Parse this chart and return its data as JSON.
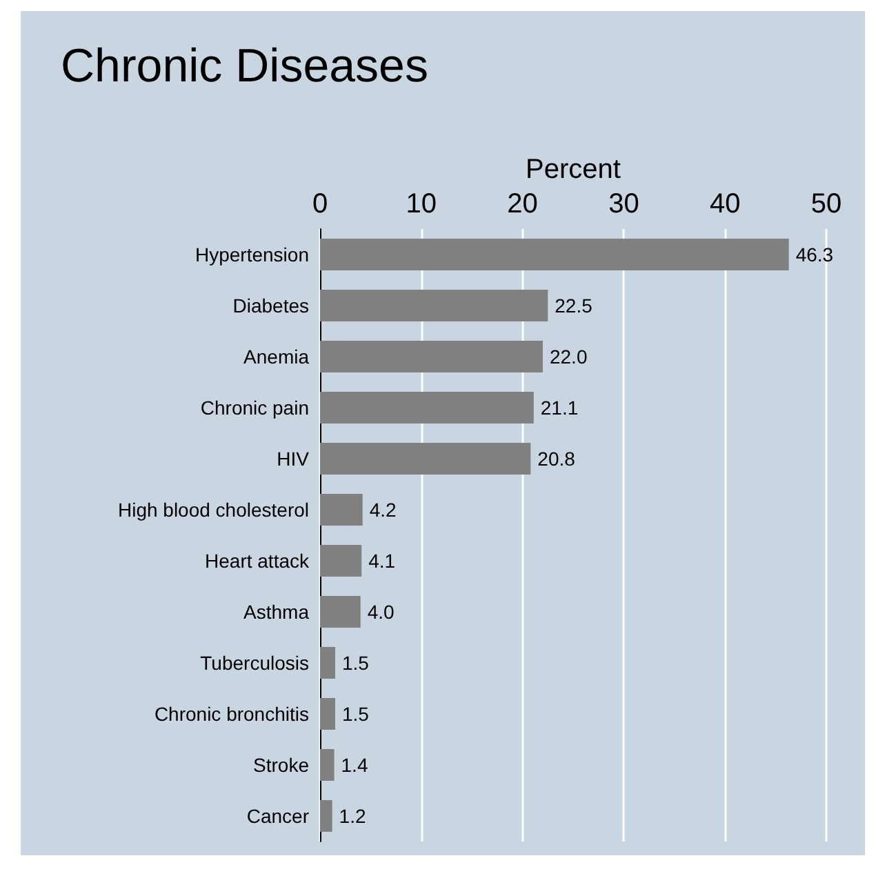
{
  "chart_data": {
    "type": "bar",
    "orientation": "horizontal",
    "title": "Chronic Diseases",
    "xlabel": "Percent",
    "categories": [
      "Hypertension",
      "Diabetes",
      "Anemia",
      "Chronic pain",
      "HIV",
      "High blood cholesterol",
      "Heart attack",
      "Asthma",
      "Tuberculosis",
      "Chronic bronchitis",
      "Stroke",
      "Cancer"
    ],
    "values": [
      46.3,
      22.5,
      22.0,
      21.1,
      20.8,
      4.2,
      4.1,
      4.0,
      1.5,
      1.5,
      1.4,
      1.2
    ],
    "value_labels": [
      "46.3",
      "22.5",
      "22.0",
      "21.1",
      "20.8",
      "4.2",
      "4.1",
      "4.0",
      "1.5",
      "1.5",
      "1.4",
      "1.2"
    ],
    "color": "#808080",
    "xlim": [
      0,
      50
    ],
    "xticks": [
      0,
      10,
      20,
      30,
      40,
      50
    ],
    "grid": "x"
  }
}
